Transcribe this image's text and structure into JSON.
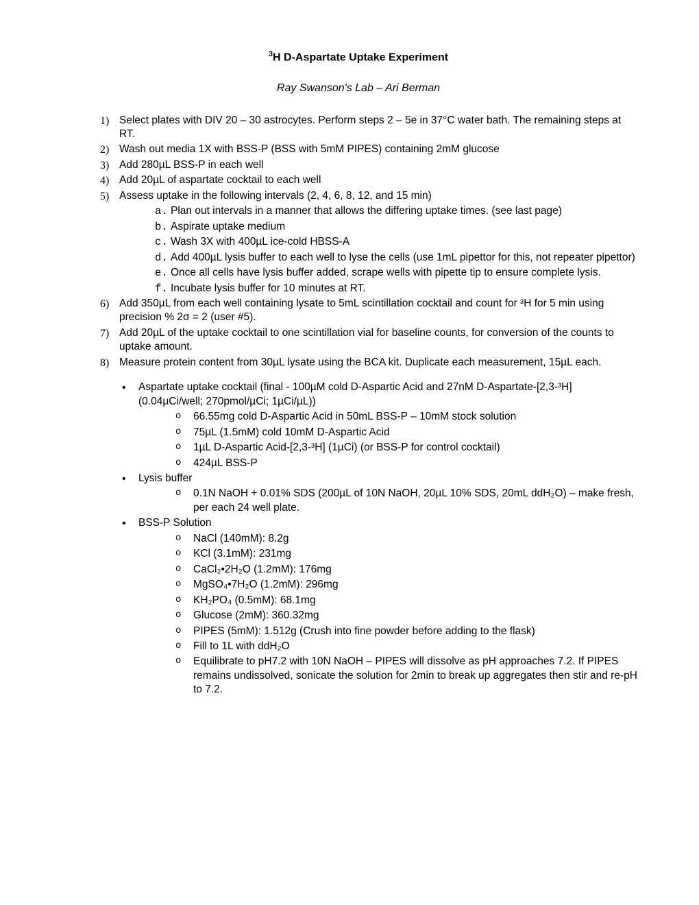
{
  "title_prefix_super": "3",
  "title_text": "H D-Aspartate Uptake Experiment",
  "subtitle": "Ray Swanson's Lab – Ari Berman",
  "steps": [
    "Select plates with DIV 20 – 30 astrocytes. Perform steps 2 – 5e in 37°C water bath. The remaining steps at RT.",
    "Wash out media 1X with BSS-P (BSS with 5mM PIPES) containing 2mM glucose",
    "Add 280µL BSS-P in each well",
    "Add 20µL of aspartate cocktail to each well",
    "Assess uptake in the following intervals (2, 4, 6, 8, 12, and 15 min)",
    "Add 350µL from each well containing lysate to 5mL scintillation cocktail and count for ³H for 5 min using precision % 2σ = 2 (user #5).",
    "Add 20µL of the uptake cocktail to one scintillation vial for baseline counts, for conversion of the counts to uptake amount.",
    "Measure protein content from 30µL lysate using the BCA kit. Duplicate each measurement, 15µL each."
  ],
  "substeps5": [
    "Plan out intervals in a manner that allows the differing uptake times. (see last page)",
    "Aspirate uptake medium",
    "Wash 3X with 400µL ice-cold HBSS-A",
    "Add 400µL lysis buffer to each well to lyse the cells (use 1mL pipettor for this, not repeater pipettor)",
    "Once all cells have lysis buffer added, scrape wells with pipette tip to ensure complete lysis.",
    "Incubate lysis buffer for 10 minutes at RT."
  ],
  "recipes": {
    "cocktail_header": "Aspartate uptake cocktail (final - 100µM cold D-Aspartic Acid and 27nM D-Aspartate-[2,3-³H] (0.04µCi/well; 270pmol/µCi; 1µCi/µL))",
    "cocktail_items": [
      "66.55mg cold D-Aspartic Acid in 50mL BSS-P – 10mM stock solution",
      "75µL (1.5mM) cold 10mM D-Aspartic Acid",
      "1µL D-Aspartic Acid-[2,3-³H] (1µCi) (or BSS-P for control cocktail)",
      "424µL BSS-P"
    ],
    "lysis_header": "Lysis buffer",
    "lysis_items": [
      "0.1N NaOH + 0.01% SDS (200µL of 10N NaOH, 20µL 10% SDS, 20mL ddH₂O) – make fresh, per each 24 well plate."
    ],
    "bssp_header": "BSS-P Solution",
    "bssp_items": [
      "NaCl (140mM): 8.2g",
      "KCl (3.1mM): 231mg",
      "CaCl₂•2H₂O (1.2mM): 176mg",
      "MgSO₄•7H₂O (1.2mM): 296mg",
      "KH₂PO₄ (0.5mM): 68.1mg",
      "Glucose (2mM): 360.32mg",
      "PIPES (5mM): 1.512g (Crush into fine powder before adding to the flask)",
      "Fill to 1L with ddH₂O",
      "Equilibrate to pH7.2 with 10N NaOH – PIPES will dissolve as pH approaches 7.2. If PIPES remains undissolved, sonicate the solution for 2min to break up aggregates then stir and re-pH to 7.2."
    ]
  }
}
